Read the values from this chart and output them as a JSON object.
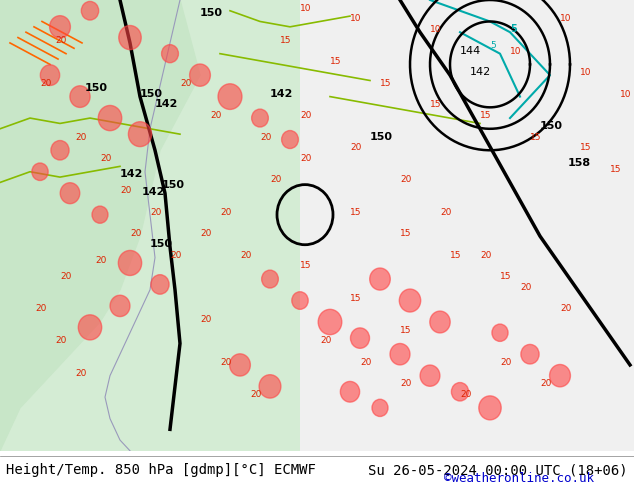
{
  "title_left": "Height/Temp. 850 hPa [gdmp][°C] ECMWF",
  "title_right": "Su 26-05-2024 00:00 UTC (18+06)",
  "credit": "©weatheronline.co.uk",
  "background_color": "#e8e8e8",
  "map_bg_color": "#d4ecd4",
  "ocean_color": "#f0f0f0",
  "bottom_bar_color": "#ffffff",
  "text_color": "#000000",
  "credit_color": "#0000cc",
  "title_fontsize": 10,
  "credit_fontsize": 9
}
